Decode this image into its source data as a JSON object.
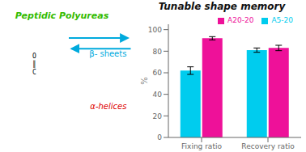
{
  "chart_data": {
    "type": "bar",
    "title": "Tunable shape memory",
    "ylabel": "%",
    "categories": [
      "Fixing ratio",
      "Recovery ratio"
    ],
    "series": [
      {
        "name": "A5-20",
        "color": "#00CCEE",
        "values": [
          62,
          81
        ],
        "errors": [
          3.5,
          2.0
        ]
      },
      {
        "name": "A20-20",
        "color": "#EE1199",
        "values": [
          92,
          83
        ],
        "errors": [
          1.5,
          2.5
        ]
      }
    ],
    "ylim": [
      0,
      105
    ],
    "yticks": [
      0,
      20,
      40,
      60,
      80,
      100
    ],
    "legend": "upper right",
    "annotations": [
      {
        "text": "Peptidic Polyureas",
        "color": "#33BB00"
      },
      {
        "text": "β- sheets",
        "color": "#00AADD"
      },
      {
        "text": "α-helices",
        "color": "#DD0000"
      },
      {
        "text": "O\n║\nC",
        "color": "#000000"
      }
    ]
  }
}
